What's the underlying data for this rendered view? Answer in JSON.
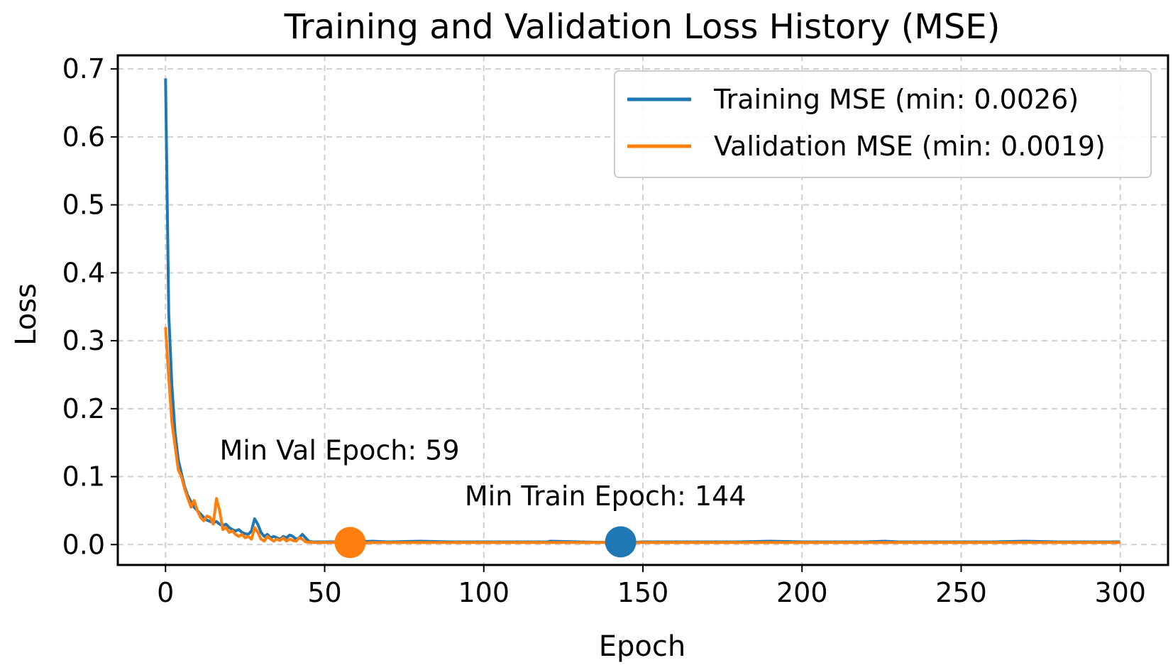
{
  "chart_data": {
    "type": "line",
    "title": "Training and Validation Loss History (MSE)",
    "xlabel": "Epoch",
    "ylabel": "Loss",
    "xlim": [
      -15,
      315
    ],
    "ylim": [
      -0.03,
      0.72
    ],
    "xticks": [
      0,
      50,
      100,
      150,
      200,
      250,
      300
    ],
    "yticks": [
      0.0,
      0.1,
      0.2,
      0.3,
      0.4,
      0.5,
      0.6,
      0.7
    ],
    "xtick_labels": [
      "0",
      "50",
      "100",
      "150",
      "200",
      "250",
      "300"
    ],
    "ytick_labels": [
      "0.0",
      "0.1",
      "0.2",
      "0.3",
      "0.4",
      "0.5",
      "0.6",
      "0.7"
    ],
    "grid": true,
    "legend_position": "top-right",
    "series": [
      {
        "name": "Training MSE (min: 0.0026)",
        "color": "#1f77b4",
        "points": [
          [
            0,
            0.686
          ],
          [
            1,
            0.34
          ],
          [
            2,
            0.235
          ],
          [
            3,
            0.165
          ],
          [
            4,
            0.125
          ],
          [
            5,
            0.105
          ],
          [
            6,
            0.085
          ],
          [
            7,
            0.072
          ],
          [
            8,
            0.063
          ],
          [
            9,
            0.055
          ],
          [
            10,
            0.05
          ],
          [
            11,
            0.045
          ],
          [
            12,
            0.04
          ],
          [
            13,
            0.036
          ],
          [
            14,
            0.034
          ],
          [
            15,
            0.032
          ],
          [
            16,
            0.034
          ],
          [
            17,
            0.03
          ],
          [
            18,
            0.028
          ],
          [
            19,
            0.03
          ],
          [
            20,
            0.025
          ],
          [
            21,
            0.022
          ],
          [
            22,
            0.02
          ],
          [
            23,
            0.022
          ],
          [
            24,
            0.018
          ],
          [
            25,
            0.016
          ],
          [
            26,
            0.015
          ],
          [
            27,
            0.02
          ],
          [
            28,
            0.038
          ],
          [
            29,
            0.03
          ],
          [
            30,
            0.018
          ],
          [
            31,
            0.012
          ],
          [
            32,
            0.015
          ],
          [
            33,
            0.01
          ],
          [
            34,
            0.012
          ],
          [
            35,
            0.01
          ],
          [
            36,
            0.008
          ],
          [
            37,
            0.012
          ],
          [
            38,
            0.01
          ],
          [
            39,
            0.014
          ],
          [
            40,
            0.012
          ],
          [
            41,
            0.008
          ],
          [
            42,
            0.01
          ],
          [
            43,
            0.015
          ],
          [
            44,
            0.01
          ],
          [
            45,
            0.005
          ],
          [
            46,
            0.004
          ],
          [
            48,
            0.004
          ],
          [
            50,
            0.004
          ],
          [
            55,
            0.004
          ],
          [
            60,
            0.004
          ],
          [
            65,
            0.005
          ],
          [
            70,
            0.004
          ],
          [
            80,
            0.005
          ],
          [
            90,
            0.004
          ],
          [
            100,
            0.004
          ],
          [
            110,
            0.004
          ],
          [
            120,
            0.004
          ],
          [
            121,
            0.005
          ],
          [
            130,
            0.004
          ],
          [
            144,
            0.0026
          ],
          [
            150,
            0.004
          ],
          [
            160,
            0.004
          ],
          [
            170,
            0.004
          ],
          [
            180,
            0.004
          ],
          [
            190,
            0.005
          ],
          [
            200,
            0.004
          ],
          [
            210,
            0.004
          ],
          [
            220,
            0.004
          ],
          [
            226,
            0.005
          ],
          [
            230,
            0.004
          ],
          [
            240,
            0.004
          ],
          [
            250,
            0.004
          ],
          [
            260,
            0.004
          ],
          [
            270,
            0.005
          ],
          [
            280,
            0.004
          ],
          [
            290,
            0.004
          ],
          [
            300,
            0.004
          ]
        ]
      },
      {
        "name": "Validation MSE (min: 0.0019)",
        "color": "#ff7f0e",
        "points": [
          [
            0,
            0.32
          ],
          [
            1,
            0.245
          ],
          [
            2,
            0.18
          ],
          [
            3,
            0.145
          ],
          [
            4,
            0.11
          ],
          [
            5,
            0.1
          ],
          [
            6,
            0.082
          ],
          [
            7,
            0.068
          ],
          [
            8,
            0.055
          ],
          [
            9,
            0.065
          ],
          [
            10,
            0.05
          ],
          [
            11,
            0.04
          ],
          [
            12,
            0.035
          ],
          [
            13,
            0.042
          ],
          [
            14,
            0.04
          ],
          [
            15,
            0.03
          ],
          [
            16,
            0.068
          ],
          [
            17,
            0.05
          ],
          [
            18,
            0.022
          ],
          [
            19,
            0.025
          ],
          [
            20,
            0.018
          ],
          [
            21,
            0.02
          ],
          [
            22,
            0.015
          ],
          [
            23,
            0.012
          ],
          [
            24,
            0.015
          ],
          [
            25,
            0.01
          ],
          [
            26,
            0.012
          ],
          [
            27,
            0.008
          ],
          [
            28,
            0.025
          ],
          [
            29,
            0.018
          ],
          [
            30,
            0.008
          ],
          [
            31,
            0.005
          ],
          [
            32,
            0.012
          ],
          [
            33,
            0.008
          ],
          [
            34,
            0.005
          ],
          [
            35,
            0.008
          ],
          [
            36,
            0.006
          ],
          [
            37,
            0.01
          ],
          [
            38,
            0.005
          ],
          [
            39,
            0.008
          ],
          [
            40,
            0.006
          ],
          [
            41,
            0.005
          ],
          [
            42,
            0.01
          ],
          [
            43,
            0.008
          ],
          [
            44,
            0.004
          ],
          [
            46,
            0.003
          ],
          [
            50,
            0.003
          ],
          [
            55,
            0.003
          ],
          [
            59,
            0.0019
          ],
          [
            65,
            0.003
          ],
          [
            70,
            0.003
          ],
          [
            80,
            0.003
          ],
          [
            90,
            0.003
          ],
          [
            100,
            0.003
          ],
          [
            110,
            0.003
          ],
          [
            120,
            0.003
          ],
          [
            130,
            0.003
          ],
          [
            140,
            0.003
          ],
          [
            150,
            0.003
          ],
          [
            160,
            0.003
          ],
          [
            170,
            0.003
          ],
          [
            180,
            0.003
          ],
          [
            190,
            0.003
          ],
          [
            200,
            0.003
          ],
          [
            210,
            0.003
          ],
          [
            220,
            0.003
          ],
          [
            230,
            0.003
          ],
          [
            240,
            0.003
          ],
          [
            250,
            0.003
          ],
          [
            260,
            0.003
          ],
          [
            270,
            0.003
          ],
          [
            280,
            0.003
          ],
          [
            290,
            0.003
          ],
          [
            300,
            0.003
          ]
        ]
      }
    ],
    "markers": [
      {
        "name": "Min Val Epoch",
        "x": 58,
        "y": 0.003,
        "color": "#ff7f0e"
      },
      {
        "name": "Min Train Epoch",
        "x": 143,
        "y": 0.004,
        "color": "#1f77b4"
      }
    ],
    "annotations": [
      {
        "text": "Min Val Epoch: 59",
        "x": 17,
        "y": 0.125
      },
      {
        "text": "Min Train Epoch: 144",
        "x": 94,
        "y": 0.058
      }
    ]
  }
}
